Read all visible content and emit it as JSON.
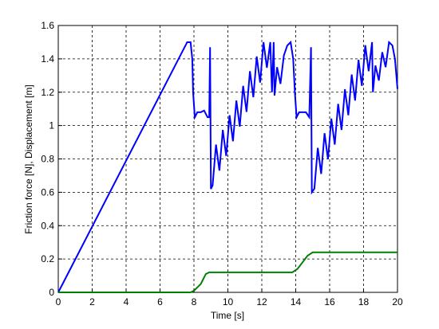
{
  "chart_data": {
    "type": "line",
    "xlabel": "Time [s]",
    "ylabel": "Friction force [N], Displacement [m]",
    "xlim": [
      0,
      20
    ],
    "ylim": [
      0,
      1.6
    ],
    "xticks": [
      0,
      2,
      4,
      6,
      8,
      10,
      12,
      14,
      16,
      18,
      20
    ],
    "yticks": [
      0,
      0.2,
      0.4,
      0.6,
      0.8,
      1,
      1.2,
      1.4,
      1.6
    ],
    "grid": true,
    "series": [
      {
        "color": "#0000ff",
        "x": [
          0,
          7.6,
          7.8,
          7.9,
          7.95,
          8.05,
          8.2,
          8.4,
          8.6,
          8.8,
          8.9,
          8.95,
          9.0,
          9.1,
          9.3,
          9.5,
          9.7,
          9.9,
          10.1,
          10.3,
          10.5,
          10.7,
          10.9,
          11.1,
          11.3,
          11.5,
          11.7,
          11.9,
          12.1,
          12.3,
          12.5,
          12.6,
          12.7,
          12.75,
          12.9,
          13.1,
          13.3,
          13.5,
          13.7,
          13.85,
          13.95,
          14.05,
          14.2,
          14.4,
          14.6,
          14.8,
          14.9,
          14.95,
          15.1,
          15.3,
          15.5,
          15.7,
          15.9,
          16.1,
          16.3,
          16.5,
          16.7,
          16.9,
          17.1,
          17.3,
          17.5,
          17.7,
          17.9,
          18.1,
          18.3,
          18.5,
          18.55,
          18.7,
          18.9,
          19.1,
          19.3,
          19.5,
          19.7,
          19.85,
          20
        ],
        "values": [
          0,
          1.5,
          1.5,
          1.4,
          1.2,
          1.05,
          1.08,
          1.08,
          1.09,
          1.05,
          1.05,
          1.47,
          0.62,
          0.642,
          0.886,
          0.73,
          0.974,
          0.818,
          1.062,
          0.906,
          1.15,
          0.994,
          1.238,
          1.082,
          1.326,
          1.17,
          1.414,
          1.258,
          1.5,
          1.346,
          1.5,
          1.2,
          1.5,
          1.18,
          1.35,
          1.25,
          1.42,
          1.48,
          1.5,
          1.4,
          1.2,
          1.05,
          1.08,
          1.08,
          1.08,
          1.05,
          1.47,
          0.6,
          0.622,
          0.866,
          0.71,
          0.954,
          0.798,
          1.042,
          0.886,
          1.13,
          0.974,
          1.218,
          1.062,
          1.306,
          1.15,
          1.394,
          1.238,
          1.482,
          1.326,
          1.5,
          1.2,
          1.36,
          1.27,
          1.44,
          1.35,
          1.5,
          1.48,
          1.4,
          1.22
        ]
      },
      {
        "color": "#008000",
        "x": [
          0,
          7.8,
          8.0,
          8.4,
          8.7,
          8.9,
          13.8,
          14.1,
          14.4,
          14.7,
          15.0,
          20
        ],
        "values": [
          0,
          0,
          0.01,
          0.05,
          0.11,
          0.12,
          0.12,
          0.14,
          0.18,
          0.22,
          0.24,
          0.24
        ]
      }
    ]
  }
}
